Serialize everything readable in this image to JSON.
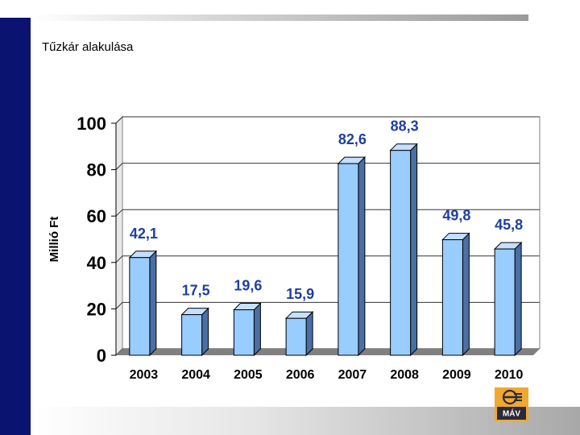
{
  "slide": {
    "title": "Tűzkár alakulása"
  },
  "logo": {
    "text": "MÁV"
  },
  "colors": {
    "sidebar": "#0a1470",
    "bar_front": "#99ccff",
    "bar_top": "#c4e0ff",
    "bar_side": "#4a6fa5",
    "labels": "#1f3f9f",
    "logo_bg": "#f0a830",
    "logo_band": "#2a2a3a"
  },
  "chart_data": {
    "type": "bar",
    "categories": [
      "2003",
      "2004",
      "2005",
      "2006",
      "2007",
      "2008",
      "2009",
      "2010"
    ],
    "values": [
      42.1,
      17.5,
      19.6,
      15.9,
      82.6,
      88.3,
      49.8,
      45.8
    ],
    "value_labels": [
      "42,1",
      "17,5",
      "19,6",
      "15,9",
      "82,6",
      "88,3",
      "49,8",
      "45,8"
    ],
    "ylabel": "Millió Ft",
    "ylim": [
      0,
      100
    ],
    "yticks": [
      0,
      20,
      40,
      60,
      80,
      100
    ],
    "grid": true,
    "style": "3d-column"
  }
}
